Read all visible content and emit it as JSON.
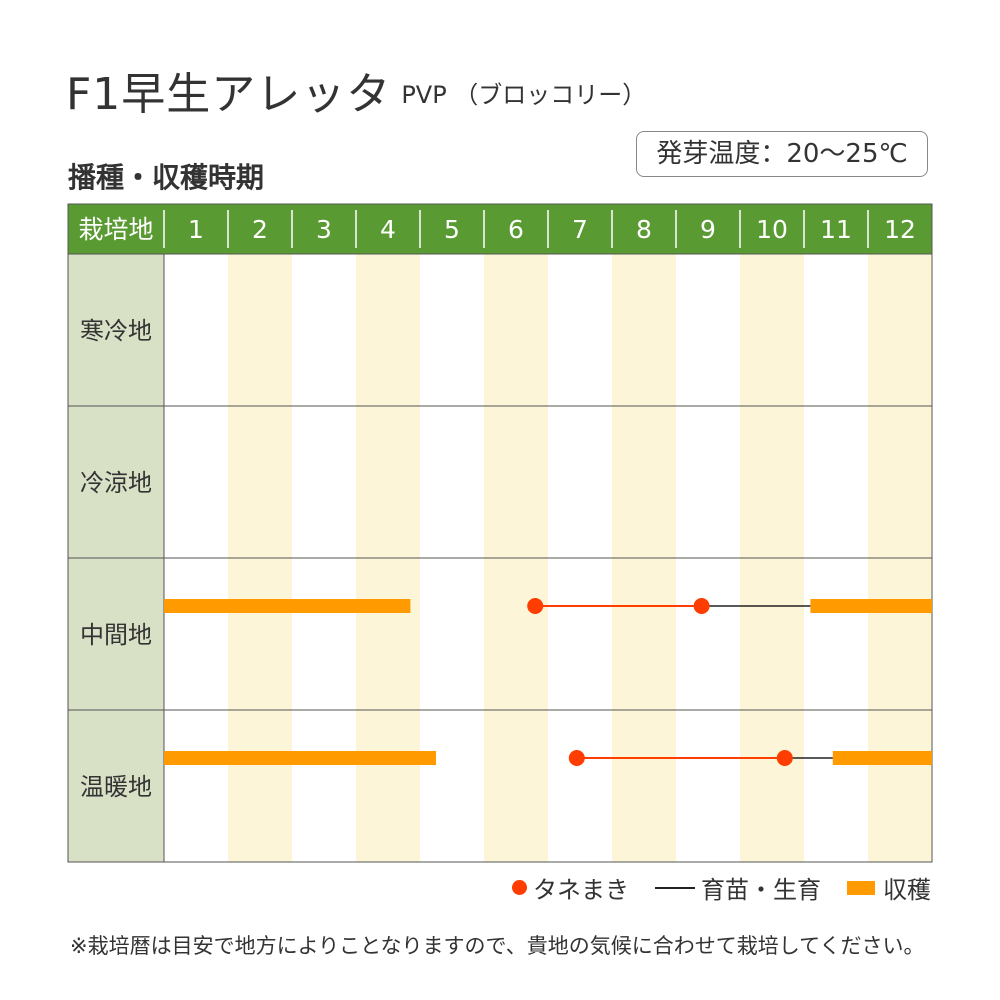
{
  "title": {
    "main": "F1早生アレッタ",
    "sub": "PVP （ブロッコリー）"
  },
  "section_title": "播種・収穫時期",
  "germination_temp": "発芽温度：20～25℃",
  "legend": {
    "sowing": "タネまき",
    "nursery": "育苗・生育",
    "harvest": "収穫"
  },
  "note": "※栽培暦は目安で地方によりことなりますので、貴地の気候に合わせて栽培してください。",
  "colors": {
    "header_green": "#5a9a32",
    "label_bg": "#d8e0c6",
    "stripe": "#fdf5d8",
    "sowing_red": "#ff3d00",
    "harvest_orange": "#ff9a00",
    "nursery_line": "#222222"
  },
  "chart_data": {
    "type": "table",
    "header_label": "栽培地",
    "categories": [
      "1",
      "2",
      "3",
      "4",
      "5",
      "6",
      "7",
      "8",
      "9",
      "10",
      "11",
      "12"
    ],
    "rows": [
      {
        "name": "寒冷地",
        "sowing": [],
        "nursery": [],
        "harvest": []
      },
      {
        "name": "冷涼地",
        "sowing": [],
        "nursery": [],
        "harvest": []
      },
      {
        "name": "中間地",
        "sowing": [
          [
            6.8,
            9.4
          ]
        ],
        "nursery": [
          [
            9.4,
            11.1
          ]
        ],
        "harvest": [
          [
            1.0,
            4.85
          ],
          [
            11.1,
            13.0
          ]
        ]
      },
      {
        "name": "温暖地",
        "sowing": [
          [
            7.45,
            10.7
          ]
        ],
        "nursery": [
          [
            10.7,
            11.45
          ]
        ],
        "harvest": [
          [
            1.0,
            5.25
          ],
          [
            11.45,
            13.0
          ]
        ]
      }
    ]
  }
}
